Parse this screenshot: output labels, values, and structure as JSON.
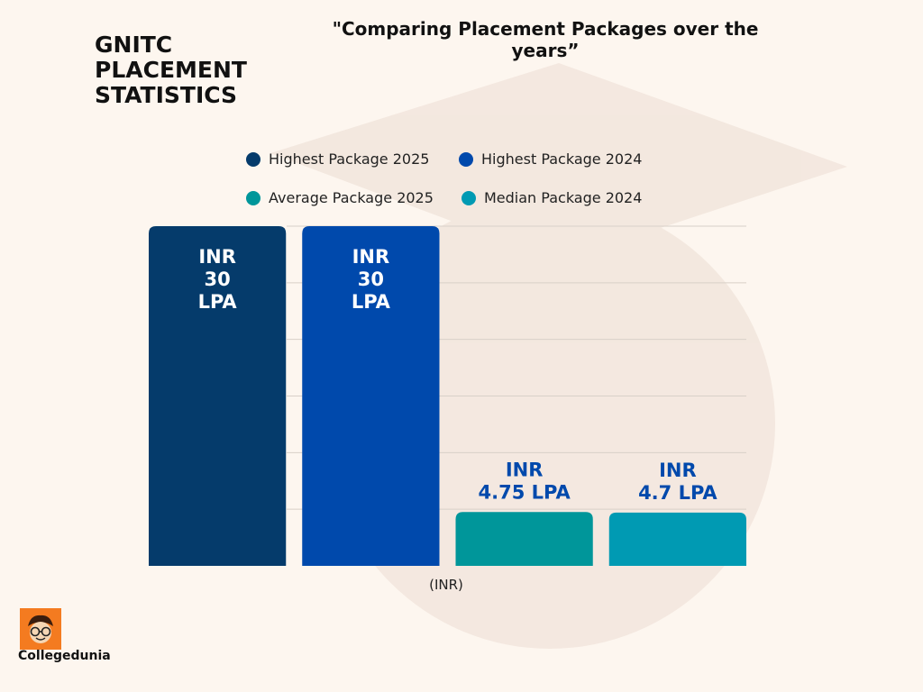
{
  "header": {
    "title_lines": [
      "GNITC",
      "PLACEMENT",
      "STATISTICS"
    ],
    "subtitle_line1": "\"Comparing  Placement Packages over the",
    "subtitle_line2": "years”"
  },
  "brand": {
    "name": "Collegedunia",
    "logo_icon": "collegedunia-mascot-icon",
    "logo_color": "#f47b20"
  },
  "chart_data": {
    "type": "bar",
    "categories": [
      "Highest Package 2025",
      "Highest Package 2024",
      "Average Package 2025",
      "Median Package 2024"
    ],
    "values": [
      30,
      30,
      4.75,
      4.7
    ],
    "colors": [
      "#053b6b",
      "#0049ac",
      "#00969a",
      "#009ab3"
    ],
    "data_labels": [
      [
        "INR",
        "30",
        "LPA"
      ],
      [
        "INR",
        "30",
        "LPA"
      ],
      [
        "INR",
        "4.75 LPA"
      ],
      [
        "INR",
        "4.7 LPA"
      ]
    ],
    "legend": [
      {
        "label": "Highest Package 2025",
        "color": "#053b6b"
      },
      {
        "label": "Highest Package 2024",
        "color": "#0049ac"
      },
      {
        "label": "Average Package 2025",
        "color": "#00969a"
      },
      {
        "label": "Median Package 2024",
        "color": "#009ab3"
      }
    ],
    "legend_position": "top",
    "xlabel": "(INR)",
    "ylim": [
      0,
      30
    ],
    "grid": true
  }
}
